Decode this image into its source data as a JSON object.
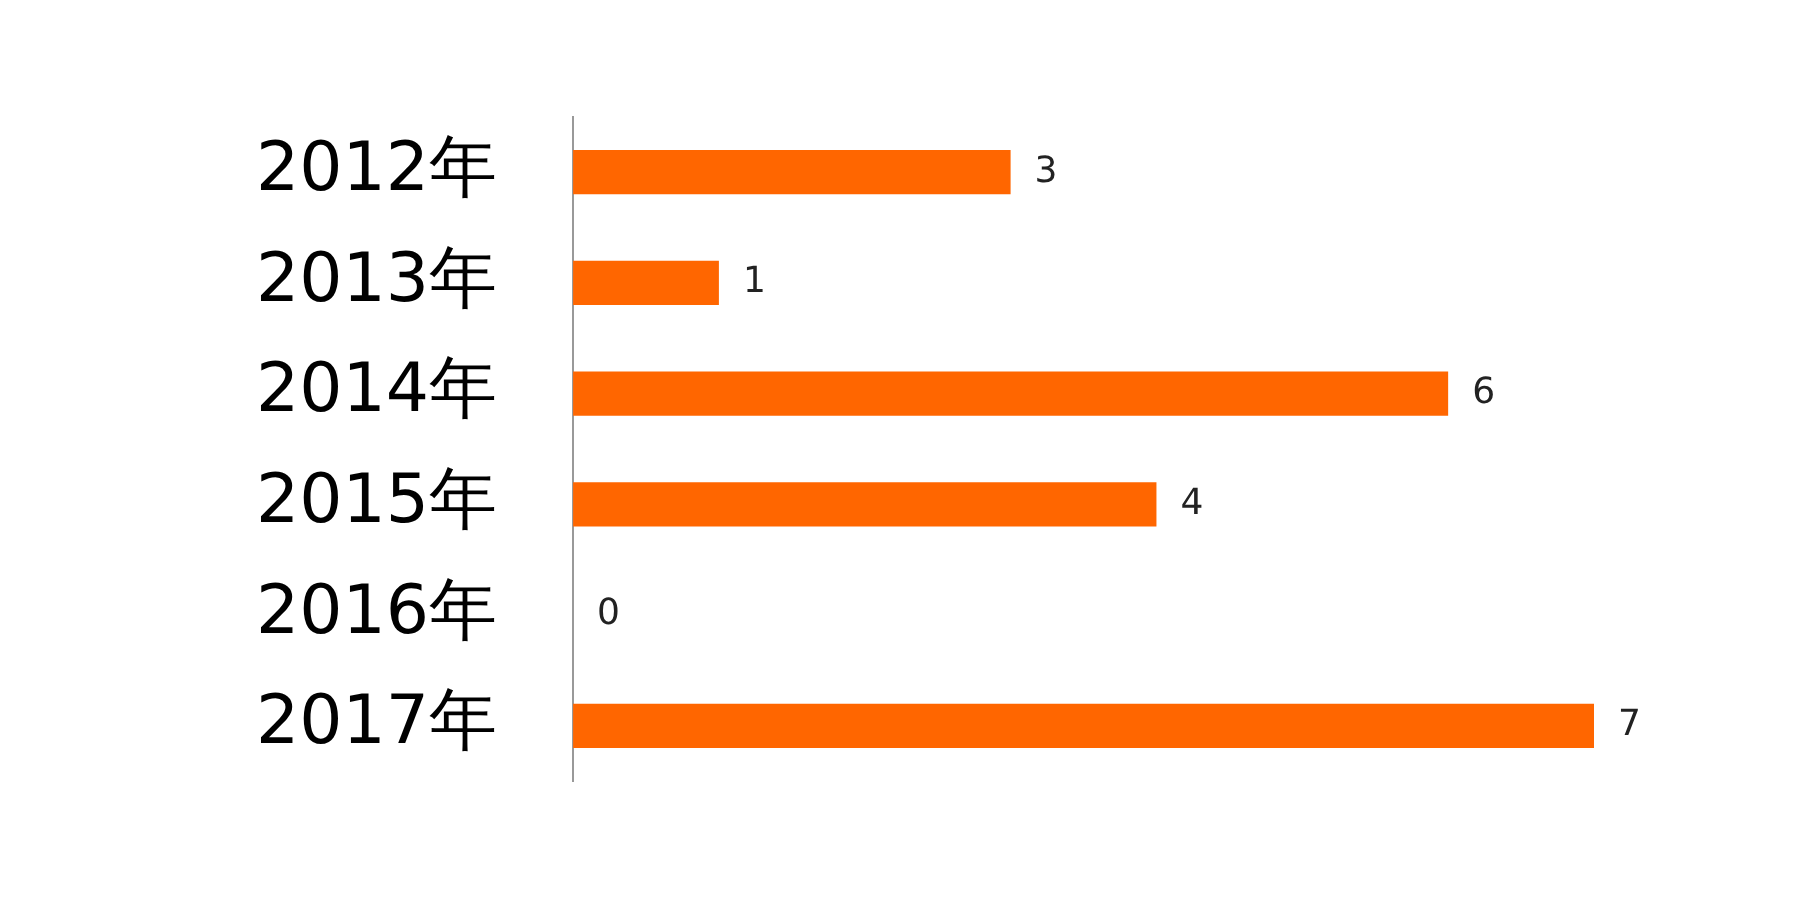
{
  "chart_data": {
    "type": "bar",
    "orientation": "horizontal",
    "categories": [
      "2012年",
      "2013年",
      "2014年",
      "2015年",
      "2016年",
      "2017年"
    ],
    "values": [
      3,
      1,
      6,
      4,
      0,
      7
    ],
    "color": "#ff6600",
    "data_labels": true,
    "tick_labels": "y"
  }
}
